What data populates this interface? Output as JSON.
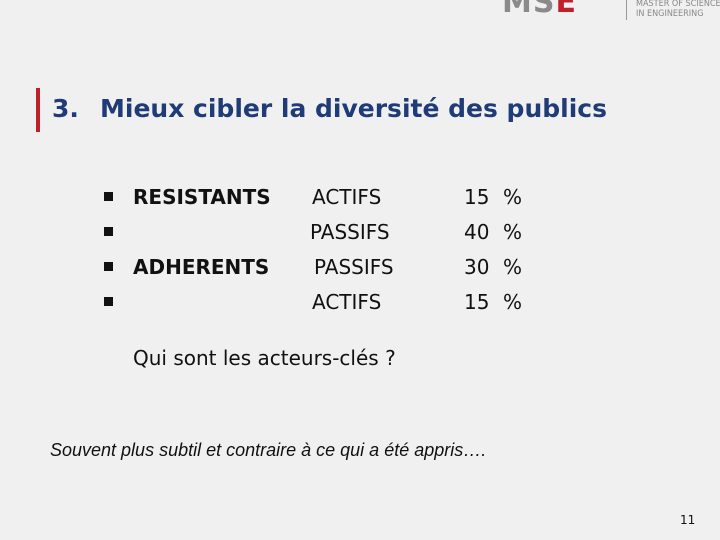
{
  "logo": {
    "brand_main": "MS",
    "brand_accent": "E",
    "line1": "MASTER OF SCIENCE",
    "line2": "IN ENGINEERING"
  },
  "slide": {
    "title_number": "3.",
    "title_text": "Mieux cibler la diversité des publics",
    "rows": [
      {
        "group": "RESISTANTS",
        "type": "ACTIFS",
        "value": "15",
        "unit": "%"
      },
      {
        "group": "",
        "type": "PASSIFS",
        "value": "40",
        "unit": "%"
      },
      {
        "group": "ADHERENTS",
        "type": "PASSIFS",
        "value": "30",
        "unit": "%"
      },
      {
        "group": "",
        "type": "ACTIFS",
        "value": "15",
        "unit": "%"
      }
    ],
    "question": "Qui sont les acteurs-clés ?",
    "note": "Souvent plus subtil et contraire à ce qui a été appris….",
    "page_number": "11"
  },
  "colors": {
    "accent": "#c0202a",
    "title": "#1f3c78",
    "background": "#f0f0f0"
  }
}
